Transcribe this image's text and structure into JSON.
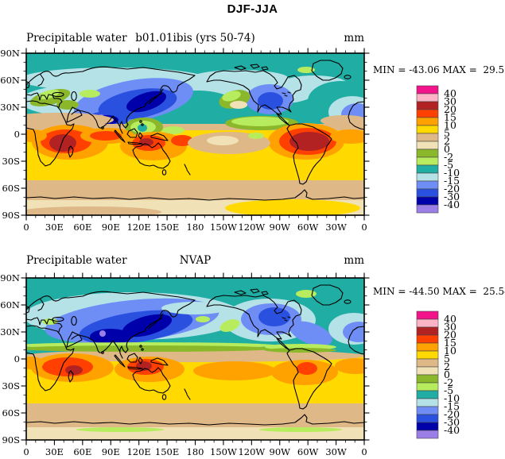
{
  "title": "DJF-JJA",
  "panels": [
    {
      "name": "model",
      "left_title": "Precipitable water",
      "center_title": "b01.01ibis (yrs 50-74)",
      "units": "mm",
      "stats": "MIN = -43.06 MAX =  29.58",
      "min": -43.06,
      "max": 29.58
    },
    {
      "name": "nvap",
      "left_title": "Precipitable water",
      "center_title": "NVAP",
      "units": "mm",
      "stats": "MIN = -44.50 MAX =  25.54",
      "min": -44.5,
      "max": 25.54
    }
  ],
  "axes": {
    "lon_labels": [
      "0",
      "30E",
      "60E",
      "90E",
      "120E",
      "150E",
      "180",
      "150W",
      "120W",
      "90W",
      "60W",
      "30W",
      "0"
    ],
    "lat_labels": [
      "90N",
      "60N",
      "30N",
      "0",
      "30S",
      "60S",
      "90S"
    ]
  },
  "colorbar": {
    "labels_top_to_bottom": [
      "40",
      "30",
      "20",
      "15",
      "10",
      "5",
      "2",
      "0",
      "-2",
      "-5",
      "-10",
      "-15",
      "-20",
      "-30",
      "-40"
    ],
    "colors_top_to_bottom": [
      "#f3148c",
      "#ffb3c6",
      "#b22222",
      "#ff4000",
      "#ffa200",
      "#ffd900",
      "#deb887",
      "#f0e2b6",
      "#8ab82a",
      "#b6ec5e",
      "#20ada4",
      "#b5e2e7",
      "#6e8ef5",
      "#2a50e0",
      "#0000aa",
      "#9c7fe6"
    ]
  },
  "chart_data": {
    "type": "heatmap",
    "subtype": "filled_contour_global_map_pair",
    "figure_title": "DJF-JJA",
    "variable": "Precipitable water",
    "units": "mm",
    "projection": "cylindrical equidistant, longitude 0E-360E left to right, latitude 90N top to 90S bottom",
    "contour_levels": [
      -40,
      -30,
      -20,
      -15,
      -10,
      -5,
      -2,
      0,
      2,
      5,
      10,
      15,
      20,
      30,
      40
    ],
    "palette_low_to_high": [
      "#9c7fe6",
      "#0000aa",
      "#2a50e0",
      "#6e8ef5",
      "#b5e2e7",
      "#20ada4",
      "#b6ec5e",
      "#8ab82a",
      "#f0e2b6",
      "#deb887",
      "#ffd900",
      "#ffa200",
      "#ff4000",
      "#b22222",
      "#ffb3c6",
      "#f3148c"
    ],
    "x_tick_labels": [
      "0",
      "30E",
      "60E",
      "90E",
      "120E",
      "150E",
      "180",
      "150W",
      "120W",
      "90W",
      "60W",
      "30W",
      "0"
    ],
    "y_tick_labels": [
      "90N",
      "60N",
      "30N",
      "0",
      "30S",
      "60S",
      "90S"
    ],
    "legend_position": "right of each map",
    "panels": [
      {
        "label": "b01.01ibis (yrs 50-74)",
        "min": -43.06,
        "max": 29.58,
        "pattern_summary": "Negative (teal/blue) DJF-JJA anomalies across the Northern Hemisphere, deepest (-20 to below -40) over South and East Asia with a < -40 spot near Tibet/North India; positive (yellow/orange/red) anomalies 0-30S with > 20 maxima over southern Africa, northern Australia and central South America; tan/wheat weak values over Southern Ocean and Antarctica."
      },
      {
        "label": "NVAP",
        "min": -44.5,
        "max": 25.54,
        "pattern_summary": "Observed NVAP pattern: broad blue negative anomalies over Eurasia and North America (deepest over India/East Asia, < -40 spot near Tibet), teal elsewhere in NH; green-to-tan transition band near the equator; orange/red positive anomalies over southern-tropical Africa, Australia and South America; tan/wheat over high southern latitudes."
      }
    ]
  }
}
